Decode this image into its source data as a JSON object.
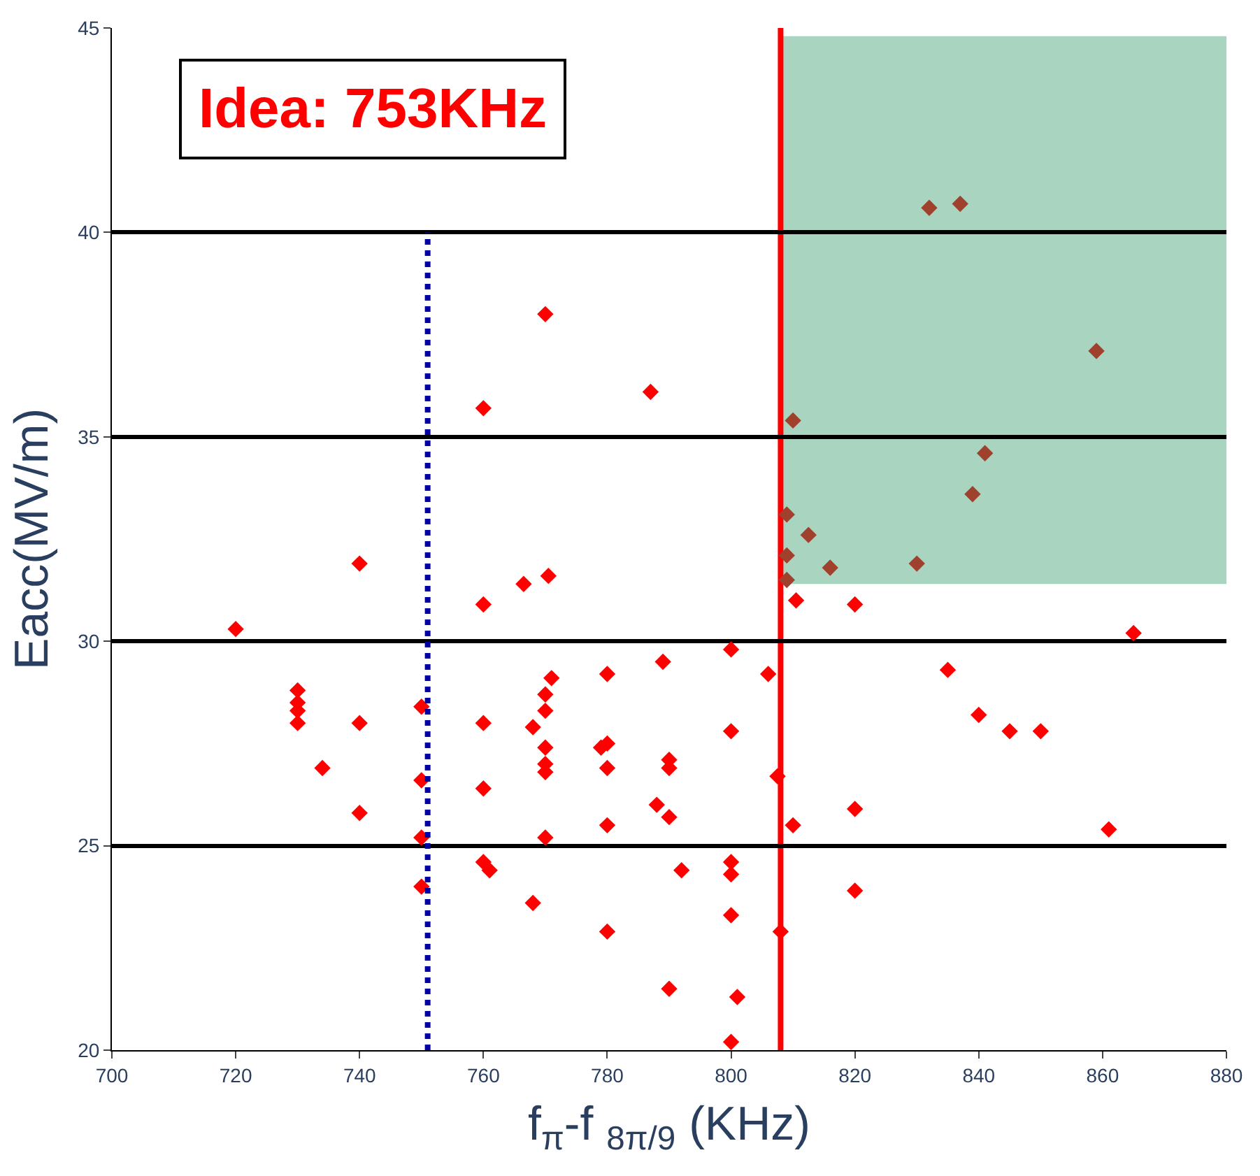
{
  "chart_data": {
    "type": "scatter",
    "xlabel": "f$_{π}$-f $_{8π/9}$ (KHz)",
    "ylabel": "Eacc(MV/m)",
    "xlim": [
      700,
      880
    ],
    "xticks": [
      700,
      720,
      740,
      760,
      780,
      800,
      820,
      840,
      860,
      880
    ],
    "ylim": [
      20,
      45
    ],
    "yticks": [
      20,
      25,
      30,
      35,
      40,
      45
    ],
    "grid": "y",
    "marker": "diamond",
    "series": [
      {
        "color": "#ff0000",
        "x": [
          720,
          730,
          730,
          730,
          730,
          734,
          740,
          740,
          740,
          750,
          750,
          750,
          750,
          760,
          760,
          760,
          760,
          760,
          761,
          766.5,
          768,
          768,
          770,
          770,
          770,
          770,
          770,
          770,
          770,
          770.5,
          771,
          779,
          780,
          780,
          780,
          780,
          780,
          787,
          788,
          789,
          790,
          790,
          790,
          790,
          792,
          800,
          800,
          800,
          800,
          800,
          800,
          801,
          806,
          807.5,
          808,
          810,
          810.5,
          820,
          820,
          820,
          835,
          840,
          845,
          850,
          861,
          865
        ],
        "values": [
          30.3,
          28.8,
          28.5,
          28.3,
          28.0,
          26.9,
          31.9,
          28.0,
          25.8,
          28.4,
          26.6,
          25.2,
          24.0,
          35.7,
          30.9,
          28.0,
          26.4,
          24.6,
          24.4,
          31.4,
          27.9,
          23.6,
          38.0,
          28.7,
          28.3,
          27.4,
          27.0,
          26.8,
          25.2,
          31.6,
          29.1,
          27.4,
          29.2,
          27.5,
          26.9,
          25.5,
          22.9,
          36.1,
          26.0,
          29.5,
          27.1,
          26.9,
          25.7,
          21.5,
          24.4,
          29.8,
          27.8,
          24.6,
          24.3,
          23.3,
          20.2,
          21.3,
          29.2,
          26.7,
          22.9,
          25.5,
          31.0,
          30.9,
          25.9,
          23.9,
          29.3,
          28.2,
          27.8,
          27.8,
          25.4,
          30.2
        ]
      },
      {
        "color": "#a0412d",
        "x": [
          809,
          809,
          809,
          810,
          812.5,
          816,
          830,
          832,
          837,
          839,
          841,
          859
        ],
        "values": [
          33.1,
          32.1,
          31.5,
          35.4,
          32.6,
          31.8,
          31.9,
          40.6,
          40.7,
          33.6,
          34.6,
          37.1
        ]
      },
      {
        "type": "line",
        "color": "#0000a0",
        "marker": "none",
        "line_style": "dotted",
        "x": [
          751,
          751
        ],
        "values": [
          20,
          40
        ]
      }
    ],
    "bands": [
      {
        "axis": "y",
        "from": 31.4,
        "to": 44.8,
        "color": "#a8d4c0"
      }
    ],
    "ref_lines": [
      {
        "axis": "x",
        "value": 808,
        "color": "#ff0000",
        "line_style": "solid"
      }
    ],
    "annotations": [
      "Idea: 753KHz"
    ]
  }
}
